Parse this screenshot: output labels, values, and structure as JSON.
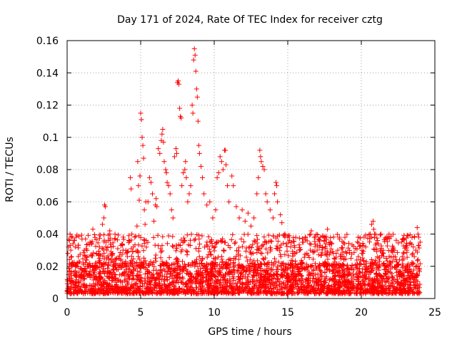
{
  "chart_data": {
    "type": "scatter",
    "title": "Day 171 of 2024, Rate Of TEC Index for receiver cztg",
    "xlabel": "GPS time / hours",
    "ylabel": "ROTI / TECUs",
    "xlim": [
      0,
      25
    ],
    "ylim": [
      0,
      0.16
    ],
    "x_ticks": [
      0,
      5,
      10,
      15,
      20,
      25
    ],
    "x_tick_labels": [
      "0",
      "5",
      "10",
      "15",
      "20",
      "25"
    ],
    "y_ticks": [
      0,
      0.02,
      0.04,
      0.06,
      0.08,
      0.1,
      0.12,
      0.14,
      0.16
    ],
    "y_tick_labels": [
      "0",
      "0.02",
      "0.04",
      "0.06",
      "0.08",
      "0.1",
      "0.12",
      "0.14",
      "0.16"
    ],
    "grid": true,
    "marker": "+",
    "marker_color": "#ff0000",
    "series": [
      {
        "name": "ROTI",
        "background_band": {
          "x_range": [
            0,
            24
          ],
          "y_range": [
            0.003,
            0.022
          ]
        },
        "points": [
          [
            0.05,
            0.028
          ],
          [
            0.1,
            0.032
          ],
          [
            0.15,
            0.036
          ],
          [
            0.2,
            0.04
          ],
          [
            0.25,
            0.03
          ],
          [
            0.3,
            0.026
          ],
          [
            0.35,
            0.038
          ],
          [
            0.4,
            0.034
          ],
          [
            0.5,
            0.036
          ],
          [
            0.55,
            0.032
          ],
          [
            0.6,
            0.038
          ],
          [
            1.1,
            0.022
          ],
          [
            1.3,
            0.024
          ],
          [
            1.6,
            0.027
          ],
          [
            1.75,
            0.043
          ],
          [
            2.0,
            0.028
          ],
          [
            2.2,
            0.032
          ],
          [
            2.4,
            0.046
          ],
          [
            2.5,
            0.05
          ],
          [
            2.55,
            0.058
          ],
          [
            2.6,
            0.057
          ],
          [
            2.65,
            0.035
          ],
          [
            2.7,
            0.03
          ],
          [
            2.8,
            0.036
          ],
          [
            2.9,
            0.042
          ],
          [
            3.0,
            0.032
          ],
          [
            3.1,
            0.028
          ],
          [
            3.5,
            0.025
          ],
          [
            3.8,
            0.03
          ],
          [
            4.1,
            0.026
          ],
          [
            4.2,
            0.039
          ],
          [
            4.3,
            0.075
          ],
          [
            4.35,
            0.068
          ],
          [
            4.4,
            0.04
          ],
          [
            4.5,
            0.032
          ],
          [
            4.6,
            0.038
          ],
          [
            4.75,
            0.045
          ],
          [
            4.8,
            0.085
          ],
          [
            4.85,
            0.07
          ],
          [
            4.9,
            0.061
          ],
          [
            4.95,
            0.076
          ],
          [
            5.0,
            0.115
          ],
          [
            5.05,
            0.111
          ],
          [
            5.1,
            0.1
          ],
          [
            5.15,
            0.095
          ],
          [
            5.2,
            0.087
          ],
          [
            5.25,
            0.055
          ],
          [
            5.3,
            0.046
          ],
          [
            5.35,
            0.06
          ],
          [
            5.5,
            0.06
          ],
          [
            5.6,
            0.075
          ],
          [
            5.7,
            0.072
          ],
          [
            5.8,
            0.065
          ],
          [
            5.9,
            0.048
          ],
          [
            6.0,
            0.058
          ],
          [
            6.05,
            0.062
          ],
          [
            6.1,
            0.057
          ],
          [
            6.2,
            0.093
          ],
          [
            6.3,
            0.09
          ],
          [
            6.4,
            0.098
          ],
          [
            6.45,
            0.102
          ],
          [
            6.5,
            0.105
          ],
          [
            6.55,
            0.097
          ],
          [
            6.6,
            0.085
          ],
          [
            6.7,
            0.08
          ],
          [
            6.75,
            0.078
          ],
          [
            6.8,
            0.072
          ],
          [
            6.9,
            0.07
          ],
          [
            7.0,
            0.065
          ],
          [
            7.1,
            0.055
          ],
          [
            7.2,
            0.05
          ],
          [
            7.3,
            0.088
          ],
          [
            7.4,
            0.093
          ],
          [
            7.45,
            0.09
          ],
          [
            7.5,
            0.134
          ],
          [
            7.55,
            0.135
          ],
          [
            7.6,
            0.133
          ],
          [
            7.65,
            0.118
          ],
          [
            7.7,
            0.113
          ],
          [
            7.75,
            0.112
          ],
          [
            7.8,
            0.07
          ],
          [
            7.9,
            0.078
          ],
          [
            8.0,
            0.08
          ],
          [
            8.05,
            0.085
          ],
          [
            8.1,
            0.075
          ],
          [
            8.2,
            0.06
          ],
          [
            8.3,
            0.065
          ],
          [
            8.4,
            0.07
          ],
          [
            8.5,
            0.12
          ],
          [
            8.55,
            0.115
          ],
          [
            8.6,
            0.148
          ],
          [
            8.65,
            0.155
          ],
          [
            8.7,
            0.151
          ],
          [
            8.75,
            0.141
          ],
          [
            8.8,
            0.13
          ],
          [
            8.85,
            0.125
          ],
          [
            8.9,
            0.11
          ],
          [
            8.95,
            0.095
          ],
          [
            9.0,
            0.09
          ],
          [
            9.1,
            0.082
          ],
          [
            9.2,
            0.075
          ],
          [
            9.3,
            0.065
          ],
          [
            9.5,
            0.058
          ],
          [
            9.7,
            0.06
          ],
          [
            9.9,
            0.05
          ],
          [
            10.1,
            0.055
          ],
          [
            10.2,
            0.075
          ],
          [
            10.3,
            0.078
          ],
          [
            10.4,
            0.088
          ],
          [
            10.5,
            0.085
          ],
          [
            10.6,
            0.08
          ],
          [
            10.7,
            0.092
          ],
          [
            10.75,
            0.092
          ],
          [
            10.8,
            0.083
          ],
          [
            10.9,
            0.07
          ],
          [
            11.0,
            0.06
          ],
          [
            11.2,
            0.076
          ],
          [
            11.3,
            0.07
          ],
          [
            11.5,
            0.057
          ],
          [
            11.7,
            0.05
          ],
          [
            11.9,
            0.055
          ],
          [
            12.1,
            0.048
          ],
          [
            12.3,
            0.053
          ],
          [
            12.5,
            0.045
          ],
          [
            12.7,
            0.05
          ],
          [
            12.9,
            0.065
          ],
          [
            13.0,
            0.075
          ],
          [
            13.1,
            0.092
          ],
          [
            13.15,
            0.088
          ],
          [
            13.2,
            0.085
          ],
          [
            13.3,
            0.082
          ],
          [
            13.4,
            0.08
          ],
          [
            13.5,
            0.065
          ],
          [
            13.6,
            0.06
          ],
          [
            13.8,
            0.055
          ],
          [
            14.0,
            0.05
          ],
          [
            14.1,
            0.065
          ],
          [
            14.2,
            0.072
          ],
          [
            14.25,
            0.07
          ],
          [
            14.3,
            0.06
          ],
          [
            14.5,
            0.052
          ],
          [
            14.6,
            0.047
          ],
          [
            14.8,
            0.04
          ],
          [
            15.0,
            0.038
          ],
          [
            15.2,
            0.032
          ],
          [
            15.5,
            0.028
          ],
          [
            15.8,
            0.03
          ],
          [
            16.0,
            0.035
          ],
          [
            16.3,
            0.028
          ],
          [
            16.5,
            0.034
          ],
          [
            16.6,
            0.042
          ],
          [
            16.8,
            0.038
          ],
          [
            17.0,
            0.03
          ],
          [
            17.2,
            0.033
          ],
          [
            17.5,
            0.038
          ],
          [
            17.7,
            0.043
          ],
          [
            17.9,
            0.035
          ],
          [
            18.1,
            0.028
          ],
          [
            18.4,
            0.03
          ],
          [
            18.7,
            0.026
          ],
          [
            19.0,
            0.028
          ],
          [
            19.3,
            0.025
          ],
          [
            19.6,
            0.031
          ],
          [
            19.8,
            0.026
          ],
          [
            20.1,
            0.028
          ],
          [
            20.3,
            0.032
          ],
          [
            20.6,
            0.04
          ],
          [
            20.7,
            0.046
          ],
          [
            20.8,
            0.048
          ],
          [
            20.85,
            0.043
          ],
          [
            20.9,
            0.04
          ],
          [
            21.1,
            0.036
          ],
          [
            21.3,
            0.03
          ],
          [
            21.5,
            0.028
          ],
          [
            21.7,
            0.025
          ],
          [
            22.0,
            0.022
          ],
          [
            22.3,
            0.026
          ],
          [
            22.6,
            0.024
          ],
          [
            22.9,
            0.028
          ],
          [
            23.1,
            0.03
          ],
          [
            23.3,
            0.034
          ],
          [
            23.5,
            0.028
          ],
          [
            23.6,
            0.026
          ],
          [
            23.7,
            0.03
          ],
          [
            23.8,
            0.044
          ],
          [
            23.85,
            0.04
          ],
          [
            23.9,
            0.038
          ],
          [
            24.0,
            0.035
          ]
        ]
      }
    ]
  }
}
